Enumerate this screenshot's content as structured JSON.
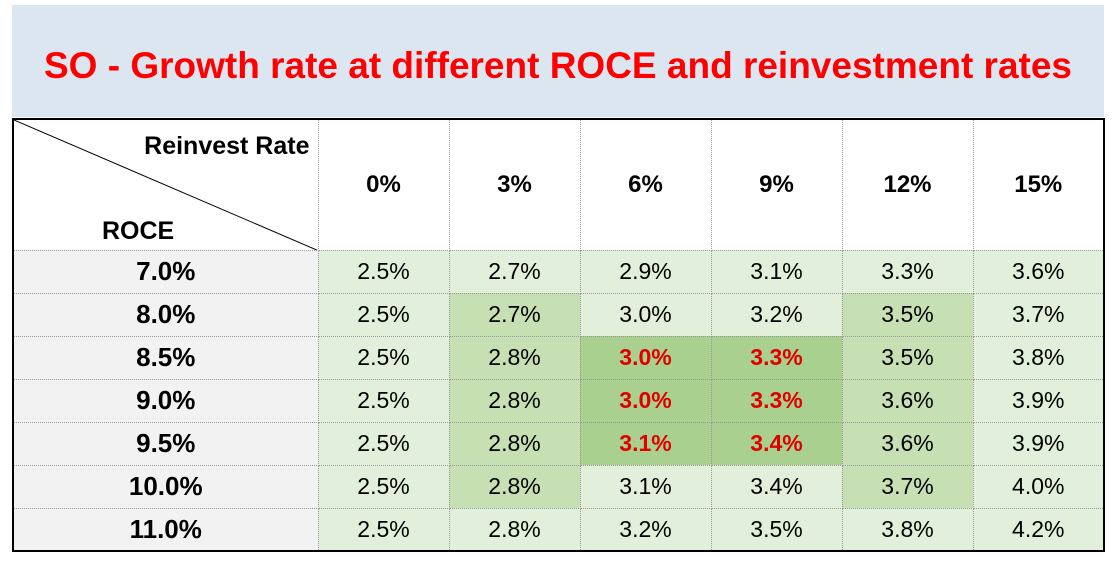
{
  "title": "SO - Growth rate at different ROCE and reinvestment rates",
  "chart_data": {
    "type": "table",
    "title": "SO - Growth rate at different ROCE and reinvestment rates",
    "column_axis_label": "Reinvest Rate",
    "row_axis_label": "ROCE",
    "columns": [
      "0%",
      "3%",
      "6%",
      "9%",
      "12%",
      "15%"
    ],
    "rows": [
      "7.0%",
      "8.0%",
      "8.5%",
      "9.0%",
      "9.5%",
      "10.0%",
      "11.0%"
    ],
    "values": [
      [
        "2.5%",
        "2.7%",
        "2.9%",
        "3.1%",
        "3.3%",
        "3.6%"
      ],
      [
        "2.5%",
        "2.7%",
        "3.0%",
        "3.2%",
        "3.5%",
        "3.7%"
      ],
      [
        "2.5%",
        "2.8%",
        "3.0%",
        "3.3%",
        "3.5%",
        "3.8%"
      ],
      [
        "2.5%",
        "2.8%",
        "3.0%",
        "3.3%",
        "3.6%",
        "3.9%"
      ],
      [
        "2.5%",
        "2.8%",
        "3.1%",
        "3.4%",
        "3.6%",
        "3.9%"
      ],
      [
        "2.5%",
        "2.8%",
        "3.1%",
        "3.4%",
        "3.7%",
        "4.0%"
      ],
      [
        "2.5%",
        "2.8%",
        "3.2%",
        "3.5%",
        "3.8%",
        "4.2%"
      ]
    ],
    "cell_fills": [
      [
        "#e2efda",
        "#e2efda",
        "#e2efda",
        "#e2efda",
        "#e2efda",
        "#e2efda"
      ],
      [
        "#e2efda",
        "#c6e0b4",
        "#e2efda",
        "#e2efda",
        "#c6e0b4",
        "#e2efda"
      ],
      [
        "#e2efda",
        "#c6e0b4",
        "#a9d08e",
        "#a9d08e",
        "#c6e0b4",
        "#e2efda"
      ],
      [
        "#e2efda",
        "#c6e0b4",
        "#a9d08e",
        "#a9d08e",
        "#c6e0b4",
        "#e2efda"
      ],
      [
        "#e2efda",
        "#c6e0b4",
        "#a9d08e",
        "#a9d08e",
        "#c6e0b4",
        "#e2efda"
      ],
      [
        "#e2efda",
        "#c6e0b4",
        "#e2efda",
        "#e2efda",
        "#c6e0b4",
        "#e2efda"
      ],
      [
        "#e2efda",
        "#e2efda",
        "#e2efda",
        "#e2efda",
        "#e2efda",
        "#e2efda"
      ]
    ],
    "highlighted_cells": [
      [
        2,
        2
      ],
      [
        2,
        3
      ],
      [
        3,
        2
      ],
      [
        3,
        3
      ],
      [
        4,
        2
      ],
      [
        4,
        3
      ]
    ],
    "highlight_text_color": "#e00000",
    "title_color": "#ff0000",
    "banner_color": "#dce6f1"
  }
}
